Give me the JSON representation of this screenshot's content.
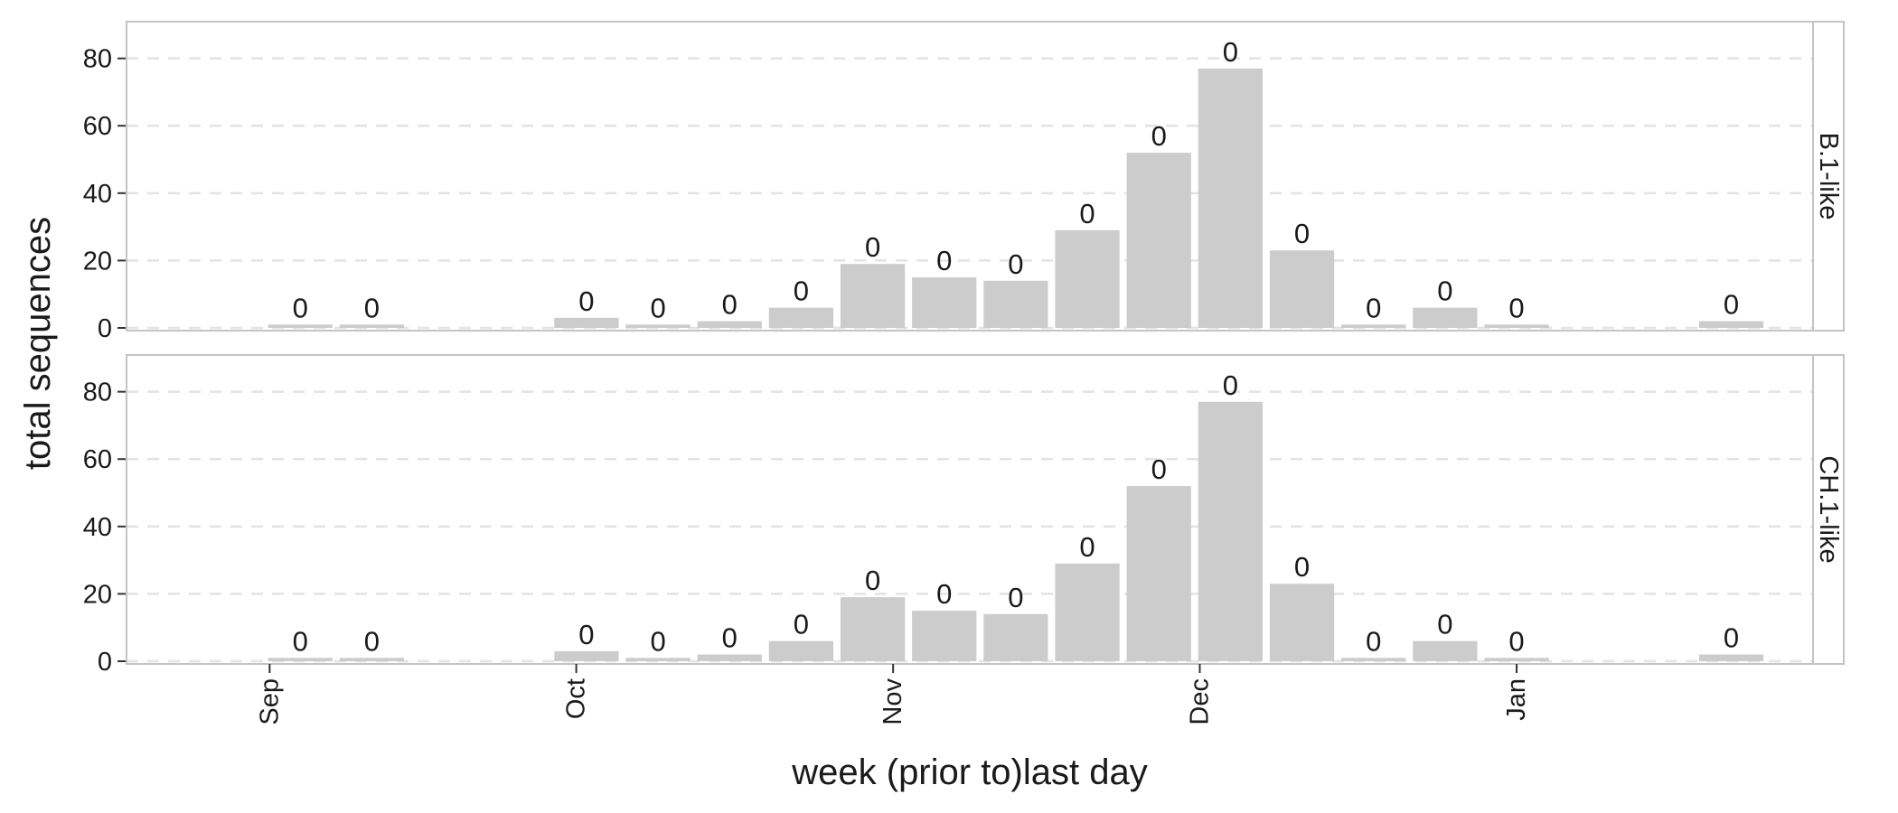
{
  "chart_data": {
    "type": "bar",
    "xlabel": "week (prior to)last day",
    "ylabel": "total sequences",
    "ylim": [
      0,
      85
    ],
    "y_ticks": [
      0,
      20,
      40,
      60,
      80
    ],
    "x_ticks": [
      {
        "date": "2020-09-01",
        "label": "Sep"
      },
      {
        "date": "2020-10-01",
        "label": "Oct"
      },
      {
        "date": "2020-11-01",
        "label": "Nov"
      },
      {
        "date": "2020-12-01",
        "label": "Dec"
      },
      {
        "date": "2021-01-01",
        "label": "Jan"
      }
    ],
    "x_range": [
      "2020-08-18",
      "2021-01-30"
    ],
    "grid": "horizontal dashed",
    "bar_color": "#cccccc",
    "panels": [
      {
        "strip_label": "B.1-like",
        "bars": [
          {
            "week": "2020-09-04",
            "value": 1,
            "label": "0"
          },
          {
            "week": "2020-09-11",
            "value": 1,
            "label": "0"
          },
          {
            "week": "2020-10-02",
            "value": 3,
            "label": "0"
          },
          {
            "week": "2020-10-09",
            "value": 1,
            "label": "0"
          },
          {
            "week": "2020-10-16",
            "value": 2,
            "label": "0"
          },
          {
            "week": "2020-10-23",
            "value": 6,
            "label": "0"
          },
          {
            "week": "2020-10-30",
            "value": 19,
            "label": "0"
          },
          {
            "week": "2020-11-06",
            "value": 15,
            "label": "0"
          },
          {
            "week": "2020-11-13",
            "value": 14,
            "label": "0"
          },
          {
            "week": "2020-11-20",
            "value": 29,
            "label": "0"
          },
          {
            "week": "2020-11-27",
            "value": 52,
            "label": "0"
          },
          {
            "week": "2020-12-04",
            "value": 77,
            "label": "0"
          },
          {
            "week": "2020-12-11",
            "value": 23,
            "label": "0"
          },
          {
            "week": "2020-12-18",
            "value": 1,
            "label": "0"
          },
          {
            "week": "2020-12-25",
            "value": 6,
            "label": "0"
          },
          {
            "week": "2021-01-01",
            "value": 1,
            "label": "0"
          },
          {
            "week": "2021-01-22",
            "value": 2,
            "label": "0"
          }
        ]
      },
      {
        "strip_label": "CH.1-like",
        "bars": [
          {
            "week": "2020-09-04",
            "value": 1,
            "label": "0"
          },
          {
            "week": "2020-09-11",
            "value": 1,
            "label": "0"
          },
          {
            "week": "2020-10-02",
            "value": 3,
            "label": "0"
          },
          {
            "week": "2020-10-09",
            "value": 1,
            "label": "0"
          },
          {
            "week": "2020-10-16",
            "value": 2,
            "label": "0"
          },
          {
            "week": "2020-10-23",
            "value": 6,
            "label": "0"
          },
          {
            "week": "2020-10-30",
            "value": 19,
            "label": "0"
          },
          {
            "week": "2020-11-06",
            "value": 15,
            "label": "0"
          },
          {
            "week": "2020-11-13",
            "value": 14,
            "label": "0"
          },
          {
            "week": "2020-11-20",
            "value": 29,
            "label": "0"
          },
          {
            "week": "2020-11-27",
            "value": 52,
            "label": "0"
          },
          {
            "week": "2020-12-04",
            "value": 77,
            "label": "0"
          },
          {
            "week": "2020-12-11",
            "value": 23,
            "label": "0"
          },
          {
            "week": "2020-12-18",
            "value": 1,
            "label": "0"
          },
          {
            "week": "2020-12-25",
            "value": 6,
            "label": "0"
          },
          {
            "week": "2021-01-01",
            "value": 1,
            "label": "0"
          },
          {
            "week": "2021-01-22",
            "value": 2,
            "label": "0"
          }
        ]
      }
    ]
  }
}
